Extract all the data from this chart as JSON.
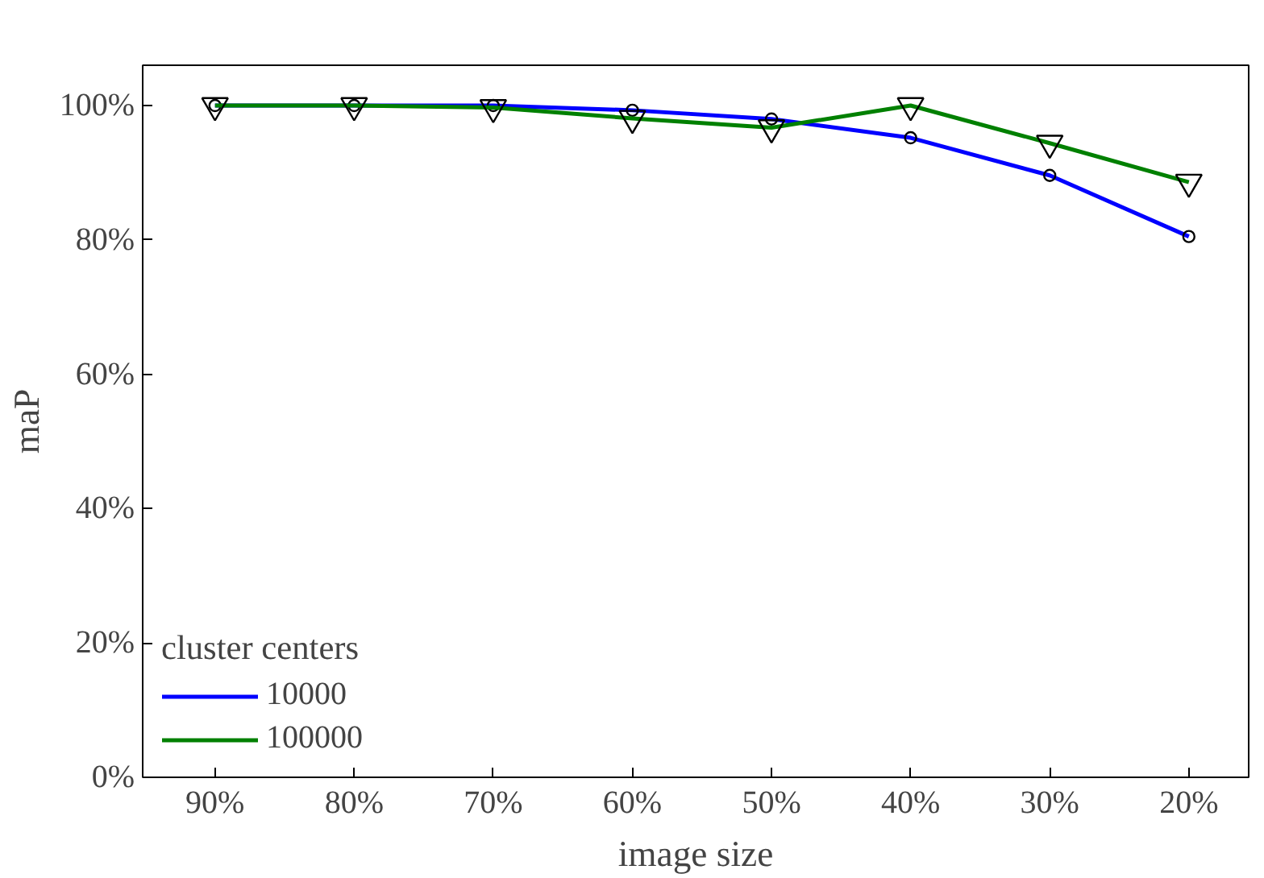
{
  "chart_data": {
    "type": "line",
    "xlabel": "image size",
    "ylabel": "maP",
    "legend_title": "cluster centers",
    "categories": [
      "90%",
      "80%",
      "70%",
      "60%",
      "50%",
      "40%",
      "30%",
      "20%"
    ],
    "series": [
      {
        "name": "10000",
        "color": "#0000ff",
        "marker": "circle",
        "values": [
          100,
          100,
          100,
          99.3,
          98.0,
          95.2,
          89.6,
          80.5
        ]
      },
      {
        "name": "100000",
        "color": "#008000",
        "marker": "triangle",
        "values": [
          100,
          100,
          99.7,
          98.1,
          96.7,
          100,
          94.4,
          88.6
        ]
      }
    ],
    "ylim": [
      0,
      106
    ],
    "yticks": [
      {
        "value": 0,
        "label": "0%"
      },
      {
        "value": 20,
        "label": "20%"
      },
      {
        "value": 40,
        "label": "40%"
      },
      {
        "value": 60,
        "label": "60%"
      },
      {
        "value": 80,
        "label": "80%"
      },
      {
        "value": 100,
        "label": "100%"
      }
    ],
    "grid": false,
    "legend": "bottom left",
    "line_style": "solid"
  }
}
